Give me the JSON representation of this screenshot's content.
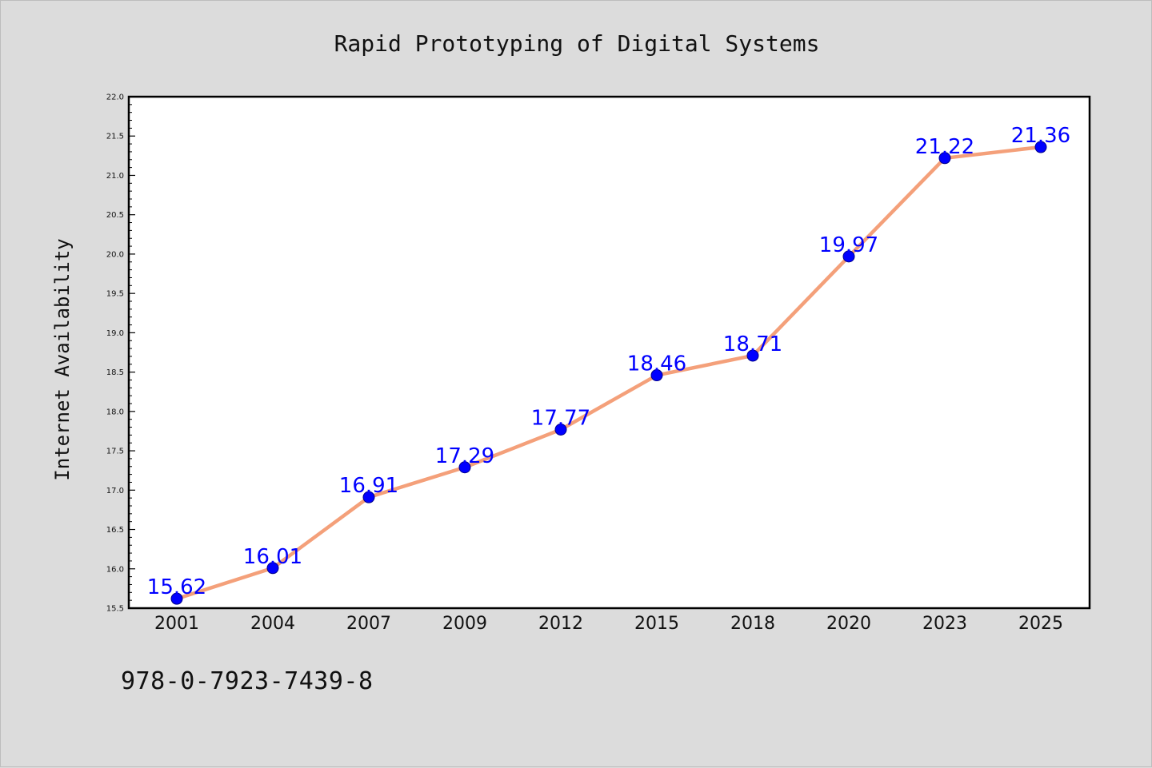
{
  "chart_data": {
    "type": "line",
    "title": "Rapid Prototyping of Digital Systems",
    "xlabel": "",
    "ylabel": "Internet Availability",
    "categories": [
      "2001",
      "2004",
      "2007",
      "2009",
      "2012",
      "2015",
      "2018",
      "2020",
      "2023",
      "2025"
    ],
    "series": [
      {
        "values": [
          15.62,
          16.01,
          16.91,
          17.29,
          17.77,
          18.46,
          18.71,
          19.97,
          21.22,
          21.36
        ],
        "labels": [
          "15.62",
          "16.01",
          "16.91",
          "17.29",
          "17.77",
          "18.46",
          "18.71",
          "19.97",
          "21.22",
          "21.36"
        ]
      }
    ],
    "ylim": [
      15.5,
      22.0
    ],
    "yticks": [
      "15.5",
      "16.0",
      "16.5",
      "17.0",
      "17.5",
      "18.0",
      "18.5",
      "19.0",
      "19.5",
      "20.0",
      "20.5",
      "21.0",
      "21.5",
      "22.0"
    ],
    "grid": false,
    "legend": "none",
    "colors": {
      "line": "#f4a07a",
      "marker": "#0000ff",
      "data_label": "#0000ff",
      "background": "#dcdcdc",
      "plot_background": "#ffffff"
    }
  },
  "footer": {
    "isbn": "978-0-7923-7439-8"
  }
}
